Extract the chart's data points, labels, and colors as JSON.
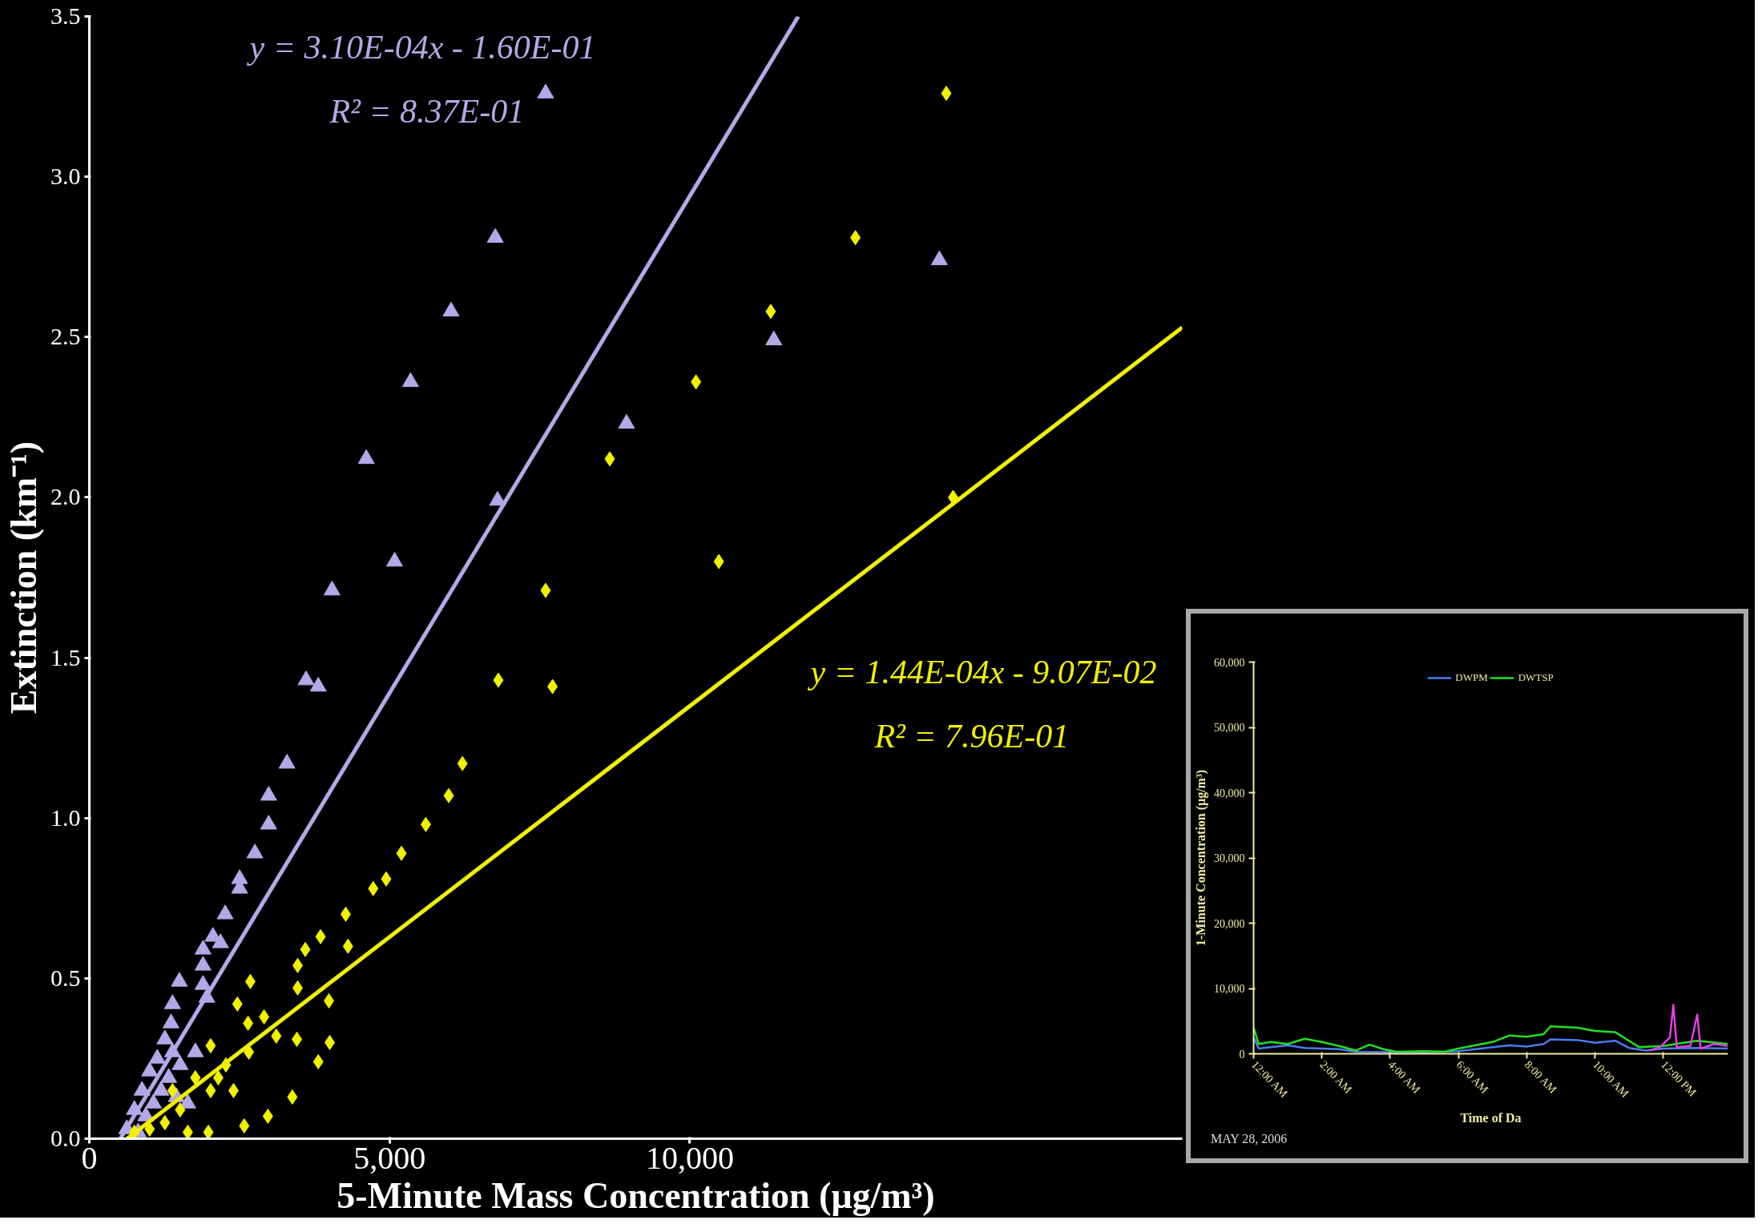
{
  "chart_data": [
    {
      "type": "scatter",
      "xlabel": "5-Minute Mass Concentration (μg/m³)",
      "ylabel": "Extinction (km⁻¹)",
      "xlim": [
        0,
        18200
      ],
      "xticks": [
        0,
        {
          "value": 5000,
          "label": "5,000"
        },
        {
          "value": 10000,
          "label": "10,000"
        }
      ],
      "ylim": [
        0,
        3.5
      ],
      "yticks": [
        {
          "value": 0,
          "label": "0.0"
        },
        {
          "value": 0.5,
          "label": "0.5"
        },
        {
          "value": 1,
          "label": "1.0"
        },
        {
          "value": 1.5,
          "label": "1.5"
        },
        {
          "value": 2,
          "label": "2.0"
        },
        {
          "value": 2.5,
          "label": "2.5"
        },
        {
          "value": 3,
          "label": "3.0"
        },
        {
          "value": 3.5,
          "label": "3.5"
        }
      ],
      "grid": false,
      "legend": false,
      "annotations": [
        "y = 3.10E-04x - 1.60E-01",
        "R² = 8.37E-01",
        "y = 1.44E-04x - 9.07E-02",
        "R² = 7.96E-01"
      ],
      "series": [
        {
          "type": "scatter",
          "marker": "triangle",
          "color": "#b4a8e8",
          "x": [
            7598,
            6760,
            6023,
            5349,
            4612,
            5083,
            4041,
            3609,
            3812,
            6798,
            8945,
            11398,
            14155,
            3291,
            2986,
            2986,
            2757,
            2503,
            2503,
            2262,
            2058,
            2185,
            1893,
            1893,
            1893,
            1957,
            1499,
            1385,
            1360,
            1258,
            1131,
            1004,
            877,
            750,
            623,
            1385,
            1512,
            1321,
            1194,
            1067,
            940,
            813,
            1448,
            1639,
            1766
          ],
          "values": [
            3.26,
            2.81,
            2.58,
            2.36,
            2.12,
            1.8,
            1.71,
            1.43,
            1.41,
            1.99,
            2.23,
            2.49,
            2.74,
            1.17,
            1.07,
            0.98,
            0.89,
            0.81,
            0.78,
            0.7,
            0.63,
            0.61,
            0.59,
            0.54,
            0.48,
            0.44,
            0.49,
            0.42,
            0.36,
            0.31,
            0.25,
            0.21,
            0.15,
            0.09,
            0.03,
            0.27,
            0.23,
            0.19,
            0.15,
            0.11,
            0.07,
            0.02,
            0.13,
            0.11,
            0.27
          ]
        },
        {
          "type": "scatter",
          "marker": "diamond",
          "color": "#f0f000",
          "x": [
            14270,
            12757,
            11347,
            10102,
            8666,
            10483,
            7598,
            6811,
            7713,
            14384,
            6213,
            5985,
            5603,
            5197,
            4943,
            4727,
            4269,
            3850,
            4307,
            3596,
            3469,
            3469,
            3990,
            3456,
            4003,
            3812,
            3380,
            2973,
            2579,
            2681,
            2465,
            2643,
            2910,
            3113,
            2020,
            2274,
            2656,
            1766,
            2020,
            1512,
            1258,
            1004,
            750,
            1639,
            1982,
            2147,
            2401,
            1385
          ],
          "values": [
            3.26,
            2.81,
            2.58,
            2.36,
            2.12,
            1.8,
            1.71,
            1.43,
            1.41,
            2.0,
            1.17,
            1.07,
            0.98,
            0.89,
            0.81,
            0.78,
            0.7,
            0.63,
            0.6,
            0.59,
            0.54,
            0.47,
            0.43,
            0.31,
            0.3,
            0.24,
            0.13,
            0.07,
            0.04,
            0.49,
            0.42,
            0.36,
            0.38,
            0.32,
            0.29,
            0.23,
            0.27,
            0.19,
            0.15,
            0.09,
            0.05,
            0.03,
            0.02,
            0.02,
            0.02,
            0.19,
            0.15,
            0.15
          ]
        },
        {
          "type": "line",
          "color": "#b4a8e8",
          "x": [
            516,
            11806
          ],
          "values": [
            0,
            3.5
          ]
        },
        {
          "type": "line",
          "color": "#f0f000",
          "x": [
            630,
            18200
          ],
          "values": [
            0,
            2.53
          ]
        }
      ]
    },
    {
      "type": "line",
      "xlabel": "Time of Da",
      "ylabel": "1-Minute Concentration (μg/m³)",
      "legend": "top",
      "grid": false,
      "xlim": [
        0,
        13.9
      ],
      "xticks": [
        {
          "value": 0,
          "label": "12:00 AM"
        },
        {
          "value": 2,
          "label": "2:00 AM"
        },
        {
          "value": 4,
          "label": "4:00 AM"
        },
        {
          "value": 6,
          "label": "6:00 AM"
        },
        {
          "value": 8,
          "label": "8:00 AM"
        },
        {
          "value": 10,
          "label": "10:00 AM"
        },
        {
          "value": 12,
          "label": "12:00 PM"
        }
      ],
      "ylim": [
        0,
        60000
      ],
      "yticks": [
        0,
        {
          "value": 10000,
          "label": "10,000"
        },
        {
          "value": 20000,
          "label": "20,000"
        },
        {
          "value": 30000,
          "label": "30,000"
        },
        {
          "value": 40000,
          "label": "40,000"
        },
        {
          "value": 50000,
          "label": "50,000"
        },
        {
          "value": 60000,
          "label": "60,000"
        }
      ],
      "annotations": [
        "MAY 28, 2006"
      ],
      "series": [
        {
          "name": "DWPM",
          "color": "#4a7cf0",
          "x": [
            0,
            0.15,
            0.5,
            1,
            1.5,
            2,
            2.5,
            3,
            4,
            5,
            6,
            7,
            7.5,
            8,
            8.5,
            8.7,
            9.5,
            10,
            10.6,
            11,
            11.5,
            12,
            13,
            13.9
          ],
          "values": [
            2500,
            800,
            1000,
            1300,
            900,
            800,
            700,
            300,
            250,
            200,
            400,
            1000,
            1300,
            1100,
            1500,
            2200,
            2100,
            1700,
            2000,
            900,
            500,
            800,
            900,
            800
          ]
        },
        {
          "name": "DWTSP",
          "color": "#22e022",
          "x": [
            0,
            0.15,
            0.5,
            1,
            1.5,
            2,
            2.5,
            3,
            3.4,
            3.8,
            4.2,
            5,
            5.6,
            6,
            7,
            7.5,
            8,
            8.5,
            8.7,
            9.5,
            10,
            10.6,
            11,
            11.3,
            12,
            13,
            13.9
          ],
          "values": [
            4000,
            1500,
            1800,
            1500,
            2300,
            1800,
            1200,
            500,
            1400,
            700,
            300,
            400,
            300,
            800,
            1800,
            2800,
            2600,
            3000,
            4200,
            4000,
            3500,
            3300,
            2000,
            1000,
            1200,
            2000,
            1500
          ]
        },
        {
          "color": "#e040e0",
          "x": [
            11.6,
            11.9,
            12.2,
            12.3,
            12.4,
            12.8,
            13.0,
            13.1,
            13.5,
            13.9
          ],
          "values": [
            500,
            1000,
            2500,
            7500,
            1000,
            1200,
            6000,
            800,
            1500,
            1200
          ]
        }
      ]
    }
  ]
}
